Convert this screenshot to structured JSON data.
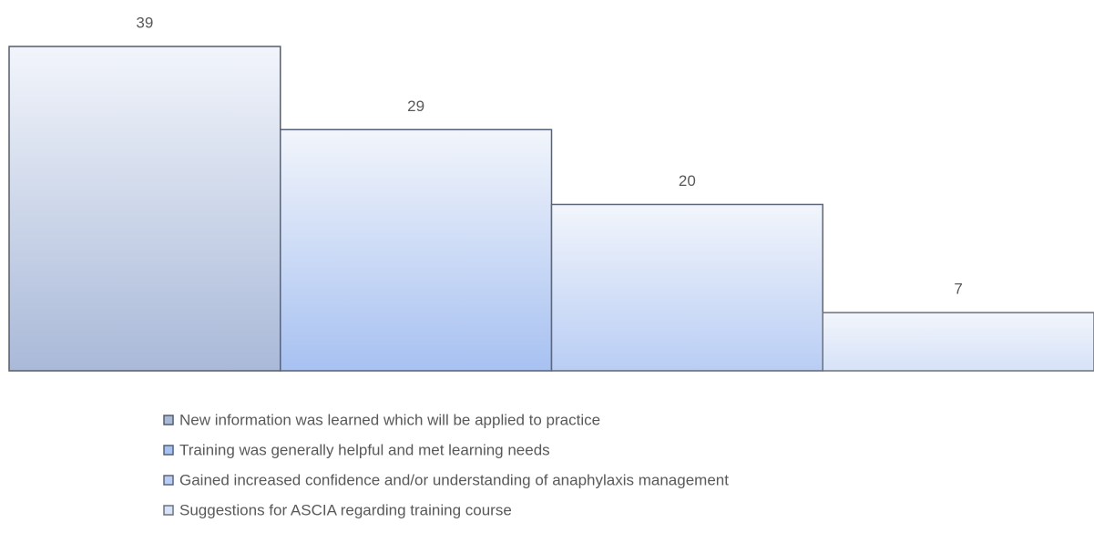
{
  "chart_data": {
    "type": "bar",
    "series": [
      {
        "name": "New information was learned which will be applied to practice",
        "color": "#a9b9d8",
        "values": [
          39
        ]
      },
      {
        "name": "Training was generally helpful and met learning needs",
        "color": "#a7c1f1",
        "values": [
          29
        ]
      },
      {
        "name": "Gained increased confidence and/or understanding of anaphylaxis management",
        "color": "#b9cdf4",
        "values": [
          20
        ]
      },
      {
        "name": "Suggestions for ASCIA regarding training course",
        "color": "#d6e2f8",
        "values": [
          7
        ]
      }
    ],
    "legend": "bottom"
  }
}
